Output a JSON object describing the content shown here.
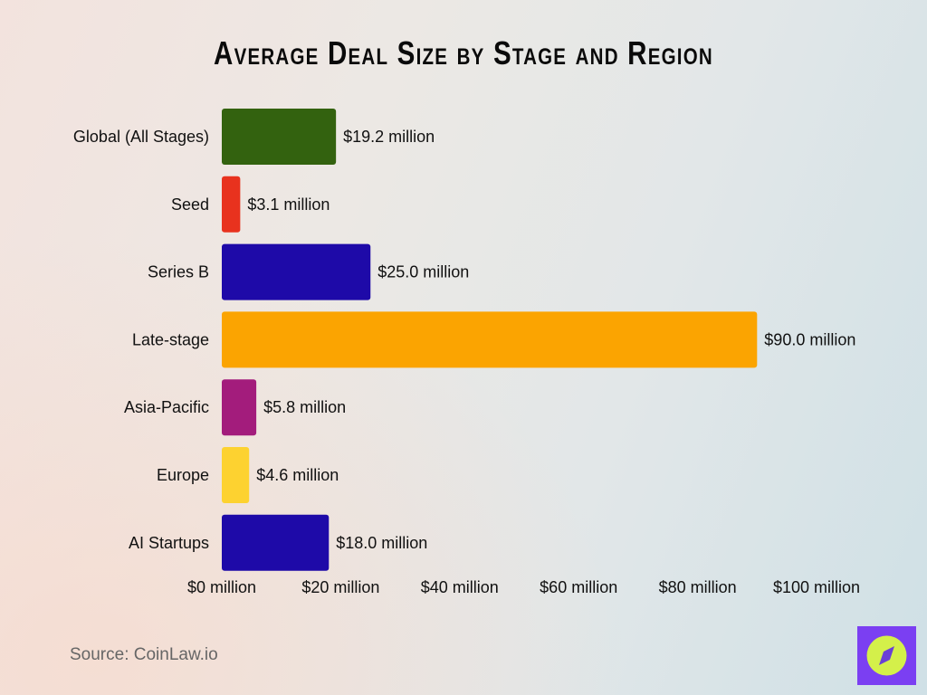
{
  "chart_data": {
    "type": "bar",
    "orientation": "horizontal",
    "title": "Average Deal Size by Stage and Region",
    "categories": [
      "Global (All Stages)",
      "Seed",
      "Series B",
      "Late-stage",
      "Asia-Pacific",
      "Europe",
      "AI Startups"
    ],
    "values": [
      19.2,
      3.1,
      25.0,
      90.0,
      5.8,
      4.6,
      18.0
    ],
    "data_labels": [
      "$19.2 million",
      "$3.1 million",
      "$25.0 million",
      "$90.0 million",
      "$5.8 million",
      "$4.6 million",
      "$18.0 million"
    ],
    "colors": [
      "#33620f",
      "#e8321e",
      "#1e0aa8",
      "#fba401",
      "#a31c7c",
      "#fdd230",
      "#1e0aa8"
    ],
    "xlim": [
      0,
      100
    ],
    "xticks": [
      0,
      20,
      40,
      60,
      80,
      100
    ],
    "xtick_labels": [
      "$0 million",
      "$20 million",
      "$40 million",
      "$60 million",
      "$80 million",
      "$100 million"
    ],
    "xlabel": "",
    "ylabel": "",
    "grid": false,
    "legend": "none"
  },
  "source": "Source: CoinLaw.io",
  "logo": {
    "icon": "compass-icon",
    "colors": {
      "background": "#7b3ff2",
      "circle": "#d4f04a"
    }
  }
}
